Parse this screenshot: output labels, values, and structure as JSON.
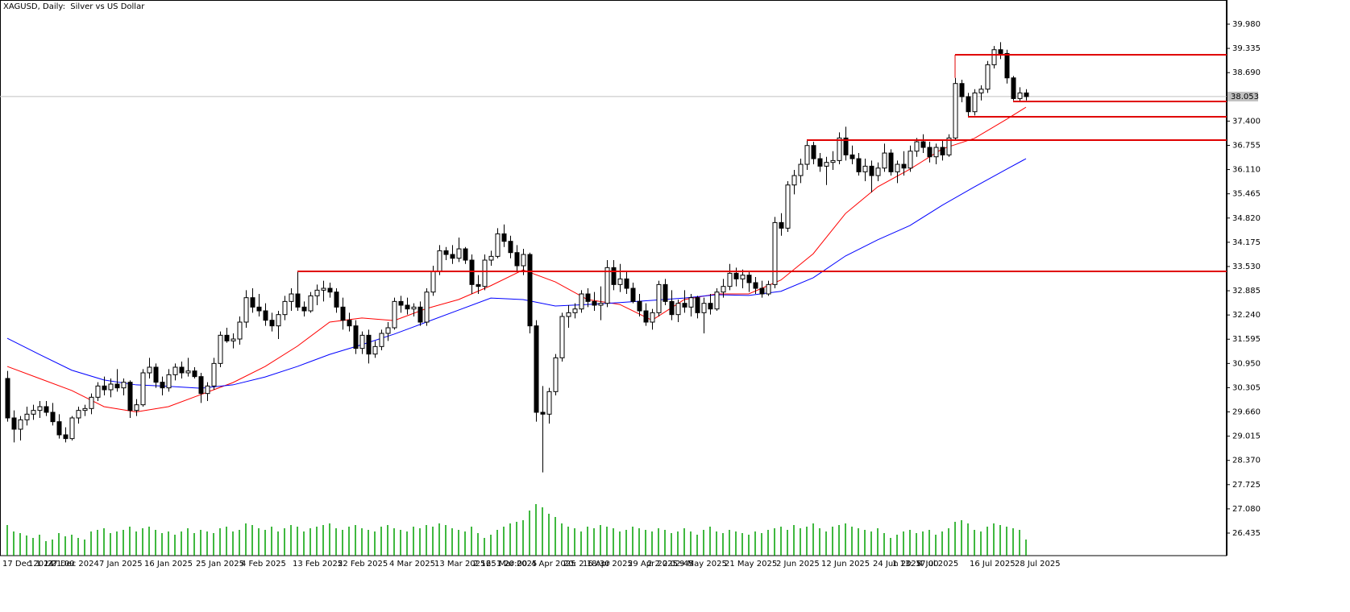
{
  "chart_data": {
    "type": "candlestick",
    "title": "XAGUSD, Daily:  Silver vs US Dollar",
    "categories": [
      "17 Dec 2024",
      null,
      null,
      null,
      "1 1 1 21:00",
      null,
      null,
      "27 Dec 2024",
      null,
      null,
      null,
      null,
      null,
      null,
      null,
      "7 Jan 2025",
      null,
      null,
      null,
      null,
      null,
      null,
      "16 Jan 2025",
      null,
      null,
      null,
      null,
      null,
      null,
      null,
      "25 Jan 2025",
      null,
      null,
      null,
      null,
      null,
      null,
      "4 Feb 2025",
      null,
      null,
      null,
      null,
      null,
      null,
      null,
      "13 Feb 2025",
      null,
      null,
      null,
      null,
      null,
      null,
      "22 Feb 2025",
      null,
      null,
      null,
      null,
      null,
      null,
      null,
      "4 Mar 2025",
      null,
      null,
      null,
      null,
      null,
      null,
      "13 Mar 2025",
      null,
      null,
      null,
      null,
      null,
      "2 16: 1 20:00",
      null,
      "25 Mar 2025",
      null,
      null,
      null,
      null,
      null,
      null,
      "4 Apr 2025",
      null,
      null,
      null,
      null,
      "20: 2 18:30",
      null,
      null,
      "16 Apr 2025",
      null,
      null,
      null,
      null,
      null,
      null,
      "29 Apr 2025",
      null,
      null,
      "2 2 2 02:45",
      null,
      null,
      null,
      null,
      "9 May 2025",
      null,
      null,
      null,
      null,
      null,
      null,
      "21 May 2025",
      null,
      null,
      null,
      null,
      null,
      null,
      null,
      "2 Jun 2025",
      null,
      null,
      null,
      null,
      null,
      null,
      "12 Jun 2025",
      null,
      null,
      null,
      null,
      null,
      null,
      null,
      "24 Jun 2025",
      null,
      null,
      "1 13: 17:00",
      null,
      null,
      null,
      "4 Jul 2025",
      null,
      null,
      null,
      null,
      null,
      null,
      null,
      "16 Jul 2025",
      null,
      null,
      null,
      null,
      null,
      null,
      "28 Jul 2025",
      null
    ],
    "open": [
      30.55,
      29.5,
      29.2,
      29.45,
      29.6,
      29.7,
      29.8,
      29.65,
      29.4,
      29.05,
      28.95,
      29.5,
      29.7,
      29.75,
      30.05,
      30.35,
      30.25,
      30.4,
      30.3,
      30.45,
      29.7,
      29.85,
      30.7,
      30.85,
      30.45,
      30.3,
      30.65,
      30.85,
      30.7,
      30.75,
      30.6,
      30.15,
      30.35,
      30.95,
      31.7,
      31.55,
      31.6,
      32.05,
      32.7,
      32.45,
      32.35,
      32.1,
      31.95,
      32.25,
      32.6,
      32.8,
      32.45,
      32.35,
      32.75,
      32.9,
      32.95,
      32.85,
      32.45,
      32.1,
      31.95,
      31.35,
      31.7,
      31.2,
      31.4,
      31.75,
      31.9,
      32.6,
      32.5,
      32.4,
      32.45,
      32.05,
      32.85,
      33.4,
      33.95,
      33.85,
      33.75,
      34.0,
      33.7,
      33.05,
      33.0,
      33.7,
      33.8,
      34.4,
      34.2,
      33.9,
      33.55,
      33.85,
      31.95,
      29.65,
      29.6,
      30.2,
      31.1,
      32.2,
      32.3,
      32.4,
      32.8,
      32.6,
      32.5,
      32.55,
      33.5,
      33.05,
      33.2,
      32.95,
      32.6,
      32.35,
      32.05,
      32.3,
      33.05,
      32.6,
      32.25,
      32.55,
      32.45,
      32.7,
      32.3,
      32.55,
      32.4,
      32.85,
      33.0,
      33.35,
      33.2,
      33.3,
      33.1,
      32.95,
      32.8,
      33.05,
      34.7,
      34.55,
      35.7,
      35.95,
      36.25,
      36.75,
      36.4,
      36.2,
      36.3,
      36.35,
      36.95,
      36.5,
      36.4,
      36.05,
      36.2,
      35.95,
      36.15,
      36.55,
      36.05,
      36.25,
      36.15,
      36.6,
      36.85,
      36.7,
      36.45,
      36.7,
      36.5,
      36.95,
      38.4,
      38.05,
      37.65,
      38.15,
      38.25,
      38.9,
      39.3,
      39.2,
      38.55,
      38.0,
      38.15
    ],
    "high": [
      30.75,
      29.7,
      29.55,
      29.8,
      29.85,
      29.95,
      29.95,
      29.9,
      29.6,
      29.25,
      29.55,
      29.8,
      29.85,
      30.15,
      30.45,
      30.6,
      30.55,
      30.8,
      30.55,
      30.5,
      30.0,
      30.8,
      31.1,
      30.95,
      30.6,
      30.8,
      30.95,
      31.0,
      31.1,
      30.85,
      30.7,
      30.45,
      31.1,
      31.8,
      31.9,
      31.75,
      32.2,
      32.9,
      32.95,
      32.8,
      32.55,
      32.3,
      32.35,
      32.75,
      32.95,
      33.4,
      32.6,
      32.85,
      33.05,
      33.15,
      33.1,
      32.95,
      32.7,
      32.3,
      32.1,
      31.8,
      31.85,
      31.55,
      31.85,
      32.05,
      32.7,
      32.75,
      32.7,
      32.55,
      32.6,
      32.95,
      33.55,
      34.1,
      34.05,
      34.1,
      34.3,
      34.05,
      33.85,
      33.3,
      33.85,
      33.95,
      34.55,
      34.65,
      34.35,
      34.1,
      34.0,
      33.9,
      32.1,
      30.35,
      30.3,
      31.2,
      32.3,
      32.5,
      32.55,
      32.9,
      32.95,
      32.85,
      33.0,
      33.7,
      33.7,
      33.6,
      33.4,
      33.1,
      32.8,
      32.55,
      32.4,
      33.15,
      33.2,
      32.9,
      32.65,
      32.9,
      32.8,
      32.75,
      32.7,
      32.8,
      32.95,
      33.2,
      33.6,
      33.5,
      33.45,
      33.4,
      33.25,
      33.15,
      33.15,
      34.85,
      34.95,
      35.8,
      36.1,
      36.4,
      36.9,
      36.85,
      36.55,
      36.45,
      36.6,
      37.1,
      37.25,
      36.75,
      36.55,
      36.4,
      36.35,
      36.3,
      36.8,
      36.65,
      36.35,
      36.6,
      36.75,
      36.95,
      37.05,
      36.85,
      36.8,
      36.9,
      37.05,
      38.55,
      38.5,
      38.15,
      38.25,
      38.35,
      39.0,
      39.4,
      39.5,
      39.3,
      38.6,
      38.3,
      38.25
    ],
    "low": [
      29.4,
      28.85,
      28.9,
      29.3,
      29.45,
      29.5,
      29.55,
      29.3,
      28.95,
      28.85,
      28.9,
      29.35,
      29.55,
      29.6,
      29.95,
      30.1,
      30.05,
      30.2,
      30.1,
      29.5,
      29.55,
      29.8,
      30.55,
      30.3,
      30.1,
      30.2,
      30.5,
      30.55,
      30.6,
      30.55,
      29.9,
      29.95,
      30.25,
      30.85,
      31.5,
      31.35,
      31.45,
      31.9,
      32.3,
      32.2,
      31.95,
      31.8,
      31.6,
      32.1,
      32.35,
      32.35,
      32.2,
      32.3,
      32.5,
      32.6,
      32.7,
      32.3,
      31.85,
      31.8,
      31.2,
      31.2,
      30.95,
      31.1,
      31.3,
      31.55,
      31.85,
      32.3,
      32.25,
      32.2,
      31.95,
      31.95,
      32.75,
      33.3,
      33.7,
      33.6,
      33.65,
      33.6,
      32.8,
      32.8,
      32.9,
      33.55,
      33.75,
      34.05,
      33.75,
      33.4,
      33.3,
      31.75,
      29.4,
      28.05,
      29.35,
      30.1,
      31.0,
      31.9,
      32.15,
      32.3,
      32.45,
      32.35,
      32.1,
      32.45,
      32.9,
      32.85,
      32.8,
      32.55,
      32.2,
      31.95,
      31.85,
      32.2,
      32.5,
      32.1,
      32.05,
      32.3,
      32.2,
      32.15,
      31.75,
      32.25,
      32.35,
      32.7,
      32.9,
      33.0,
      32.95,
      32.85,
      32.8,
      32.7,
      32.75,
      32.95,
      34.35,
      34.45,
      35.45,
      35.75,
      36.1,
      36.25,
      36.05,
      35.7,
      36.1,
      36.25,
      36.35,
      36.25,
      35.95,
      35.8,
      35.5,
      35.8,
      36.05,
      35.95,
      35.75,
      35.95,
      36.05,
      36.45,
      36.55,
      36.3,
      36.25,
      36.35,
      36.45,
      36.9,
      37.9,
      37.5,
      37.55,
      37.95,
      38.15,
      38.8,
      39.05,
      38.4,
      37.95,
      37.9,
      37.95
    ],
    "close": [
      29.5,
      29.2,
      29.45,
      29.6,
      29.7,
      29.8,
      29.65,
      29.4,
      29.05,
      28.95,
      29.5,
      29.7,
      29.75,
      30.05,
      30.35,
      30.25,
      30.4,
      30.3,
      30.45,
      29.7,
      29.85,
      30.7,
      30.85,
      30.45,
      30.3,
      30.65,
      30.85,
      30.7,
      30.75,
      30.6,
      30.15,
      30.35,
      30.95,
      31.7,
      31.55,
      31.6,
      32.05,
      32.7,
      32.45,
      32.35,
      32.1,
      31.95,
      32.25,
      32.6,
      32.8,
      32.45,
      32.35,
      32.75,
      32.9,
      32.95,
      32.85,
      32.45,
      32.1,
      31.95,
      31.35,
      31.7,
      31.2,
      31.4,
      31.75,
      31.9,
      32.6,
      32.5,
      32.4,
      32.45,
      32.05,
      32.85,
      33.4,
      33.95,
      33.85,
      33.75,
      34.0,
      33.7,
      33.05,
      33.0,
      33.7,
      33.8,
      34.4,
      34.2,
      33.9,
      33.55,
      33.85,
      31.95,
      29.65,
      29.6,
      30.2,
      31.1,
      32.2,
      32.3,
      32.4,
      32.8,
      32.6,
      32.5,
      32.55,
      33.5,
      33.05,
      33.2,
      32.95,
      32.6,
      32.35,
      32.05,
      32.3,
      33.05,
      32.6,
      32.25,
      32.55,
      32.45,
      32.7,
      32.3,
      32.55,
      32.4,
      32.85,
      33.0,
      33.35,
      33.2,
      33.3,
      33.1,
      32.95,
      32.8,
      33.05,
      34.7,
      34.55,
      35.7,
      35.95,
      36.25,
      36.75,
      36.4,
      36.2,
      36.3,
      36.35,
      36.95,
      36.5,
      36.4,
      36.05,
      36.2,
      35.95,
      36.15,
      36.55,
      36.05,
      36.25,
      36.15,
      36.6,
      36.85,
      36.7,
      36.45,
      36.7,
      36.5,
      36.95,
      38.4,
      38.05,
      37.65,
      38.15,
      38.25,
      38.9,
      39.3,
      39.2,
      38.55,
      38.0,
      38.15,
      38.053
    ],
    "volume": [
      38,
      30,
      28,
      25,
      22,
      26,
      18,
      20,
      28,
      24,
      26,
      22,
      20,
      30,
      32,
      34,
      28,
      30,
      32,
      36,
      30,
      34,
      36,
      32,
      28,
      30,
      26,
      30,
      34,
      28,
      32,
      30,
      28,
      34,
      36,
      30,
      32,
      40,
      38,
      34,
      32,
      36,
      30,
      34,
      38,
      36,
      30,
      34,
      36,
      38,
      40,
      34,
      32,
      36,
      38,
      34,
      32,
      30,
      36,
      38,
      34,
      32,
      30,
      36,
      34,
      38,
      36,
      40,
      38,
      34,
      32,
      30,
      36,
      28,
      22,
      26,
      32,
      36,
      40,
      42,
      44,
      56,
      64,
      60,
      52,
      48,
      40,
      36,
      34,
      30,
      36,
      34,
      38,
      36,
      34,
      30,
      32,
      36,
      34,
      32,
      30,
      34,
      32,
      28,
      30,
      34,
      30,
      26,
      32,
      36,
      30,
      28,
      32,
      30,
      28,
      26,
      30,
      28,
      32,
      34,
      36,
      32,
      38,
      34,
      36,
      40,
      34,
      30,
      36,
      38,
      40,
      36,
      34,
      32,
      30,
      34,
      28,
      22,
      26,
      30,
      32,
      28,
      30,
      32,
      26,
      30,
      34,
      42,
      44,
      40,
      32,
      30,
      36,
      40,
      38,
      36,
      34,
      32,
      20
    ],
    "volume_color": "#00a000",
    "vlim": [
      0,
      100
    ],
    "up_color": "#ffffff",
    "down_color": "#000000",
    "ma": [
      {
        "color": "#ff0000",
        "x": [
          0,
          5,
          10,
          15,
          20,
          25,
          30,
          35,
          40,
          45,
          50,
          55,
          60,
          65,
          70,
          75,
          80,
          85,
          90,
          95,
          100,
          105,
          110,
          115,
          120,
          125,
          130,
          135,
          140,
          145,
          150,
          155,
          158
        ],
        "values": [
          30.87,
          30.55,
          30.23,
          29.8,
          29.66,
          29.8,
          30.12,
          30.44,
          30.87,
          31.41,
          32.05,
          32.16,
          32.09,
          32.41,
          32.65,
          33.02,
          33.44,
          33.12,
          32.65,
          32.52,
          32.1,
          32.65,
          32.8,
          32.8,
          33.17,
          33.87,
          34.94,
          35.65,
          36.12,
          36.66,
          36.94,
          37.45,
          37.77
        ]
      },
      {
        "color": "#0000ff",
        "x": [
          0,
          5,
          10,
          15,
          20,
          25,
          30,
          35,
          40,
          45,
          50,
          55,
          60,
          65,
          70,
          75,
          80,
          85,
          90,
          95,
          100,
          105,
          110,
          115,
          120,
          125,
          130,
          135,
          140,
          145,
          150,
          155,
          158
        ],
        "values": [
          31.62,
          31.19,
          30.77,
          30.51,
          30.38,
          30.34,
          30.29,
          30.38,
          30.59,
          30.87,
          31.19,
          31.45,
          31.73,
          32.05,
          32.37,
          32.69,
          32.65,
          32.48,
          32.52,
          32.57,
          32.63,
          32.69,
          32.78,
          32.76,
          32.87,
          33.23,
          33.81,
          34.24,
          34.62,
          35.16,
          35.65,
          36.12,
          36.4
        ]
      }
    ],
    "levels": [
      {
        "value": 39.166,
        "start": 147
      },
      {
        "value": 37.923,
        "start": 156
      },
      {
        "value": 37.515,
        "start": 149
      },
      {
        "value": 36.894,
        "start": 124
      },
      {
        "value": 33.4,
        "start": 45
      }
    ],
    "level_color": "#e00000",
    "current_price": 38.053,
    "ylim": [
      25.835,
      40.623
    ],
    "yticks": [
      {
        "value": 39.98,
        "label": "39.980"
      },
      39.335,
      {
        "value": 38.69,
        "label": "38.690"
      },
      {
        "value": 37.4,
        "label": "37.400"
      },
      36.755,
      {
        "value": 36.11,
        "label": "36.110"
      },
      35.465,
      {
        "value": 34.82,
        "label": "34.820"
      },
      34.175,
      {
        "value": 33.53,
        "label": "33.530"
      },
      32.885,
      {
        "value": 32.24,
        "label": "32.240"
      },
      31.595,
      {
        "value": 30.95,
        "label": "30.950"
      },
      30.305,
      {
        "value": 29.66,
        "label": "29.660"
      },
      29.015,
      {
        "value": 28.37,
        "label": "28.370"
      },
      27.725,
      {
        "value": 27.08,
        "label": "27.080"
      },
      26.435
    ]
  }
}
